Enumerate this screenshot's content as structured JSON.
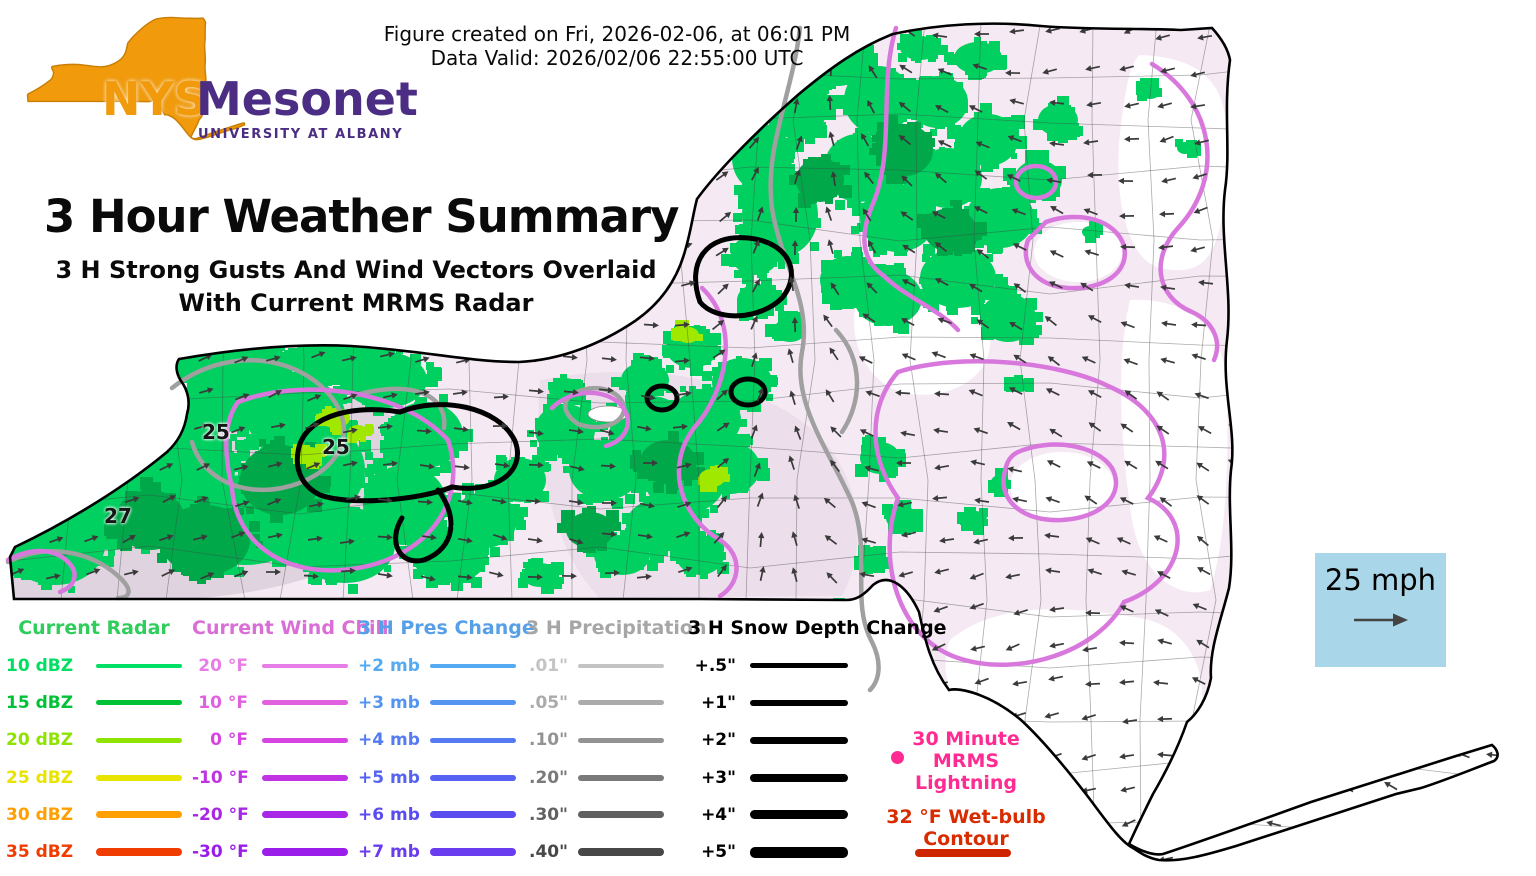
{
  "header": {
    "created": "Figure created on Fri, 2026-02-06, at 06:01 PM",
    "valid": "Data Valid: 2026/02/06 22:55:00 UTC"
  },
  "logo": {
    "nys": "NYS",
    "mesonet": "Mesonet",
    "subtitle": "UNIVERSITY AT ALBANY",
    "orange": "#f09a0c",
    "purple": "#4b2e83"
  },
  "titles": {
    "main": "3 Hour Weather Summary",
    "sub1": "3 H Strong Gusts And Wind Vectors Overlaid",
    "sub2": "With Current MRMS Radar"
  },
  "wind_scale": {
    "label": "25 mph",
    "box_color": "#a9d6e8"
  },
  "map": {
    "labels": {
      "gust_a": "25",
      "gust_b": "25",
      "gust_c": "27"
    },
    "colors": {
      "radar_green": "#00d05f",
      "radar_dark_green": "#00a84a",
      "radar_yellow_green": "#a0e800",
      "wind_chill_contour": "#d878dd",
      "precip_contour": "#a0a0a0",
      "snow_contour": "#000000",
      "state_fill": "#f5eaf4",
      "arrow_color": "#3a3a3a"
    }
  },
  "legend": {
    "radar": {
      "title": "Current Radar",
      "title_color": "#2fce5c",
      "rows": [
        {
          "label": "10 dBZ",
          "color": "#00df63"
        },
        {
          "label": "15 dBZ",
          "color": "#00c236"
        },
        {
          "label": "20 dBZ",
          "color": "#8fe300"
        },
        {
          "label": "25 dBZ",
          "color": "#e8e400"
        },
        {
          "label": "30 dBZ",
          "color": "#ffa000"
        },
        {
          "label": "35 dBZ",
          "color": "#f03c00"
        }
      ]
    },
    "wind_chill": {
      "title": "Current Wind Chill",
      "title_color": "#d96fd6",
      "rows": [
        {
          "label": "20 °F",
          "color": "#e77de7"
        },
        {
          "label": "10 °F",
          "color": "#e160de"
        },
        {
          "label": "0 °F",
          "color": "#d644e2"
        },
        {
          "label": "-10 °F",
          "color": "#c133e2"
        },
        {
          "label": "-20 °F",
          "color": "#a826e5"
        },
        {
          "label": "-30 °F",
          "color": "#9a1dea"
        }
      ]
    },
    "pres_change": {
      "title": "3 H Pres Change",
      "title_color": "#57a0e8",
      "rows": [
        {
          "label": "+2 mb",
          "color": "#55aaf2"
        },
        {
          "label": "+3 mb",
          "color": "#5595f2"
        },
        {
          "label": "+4 mb",
          "color": "#557bf2"
        },
        {
          "label": "+5 mb",
          "color": "#5563f0"
        },
        {
          "label": "+6 mb",
          "color": "#5a4cee"
        },
        {
          "label": "+7 mb",
          "color": "#6a3cf0"
        }
      ]
    },
    "precip": {
      "title": "3 H Precipitation",
      "title_color": "#a6a6a6",
      "rows": [
        {
          "label": ".01\"",
          "color": "#c4c4c4"
        },
        {
          "label": ".05\"",
          "color": "#ababab"
        },
        {
          "label": ".10\"",
          "color": "#939393"
        },
        {
          "label": ".20\"",
          "color": "#7a7a7a"
        },
        {
          "label": ".30\"",
          "color": "#616161"
        },
        {
          "label": ".40\"",
          "color": "#474747"
        }
      ]
    },
    "snow": {
      "title": "3 H Snow Depth Change",
      "title_color": "#000000",
      "rows": [
        {
          "label": "+.5\"",
          "color": "#000000"
        },
        {
          "label": "+1\"",
          "color": "#000000"
        },
        {
          "label": "+2\"",
          "color": "#000000"
        },
        {
          "label": "+3\"",
          "color": "#000000"
        },
        {
          "label": "+4\"",
          "color": "#000000"
        },
        {
          "label": "+5\"",
          "color": "#000000"
        }
      ]
    },
    "lightning": {
      "line1": "30 Minute",
      "line2": "MRMS",
      "line3": "Lightning",
      "color": "#ff2a92"
    },
    "wetbulb": {
      "label": "32 °F Wet-bulb Contour",
      "color": "#d92b00"
    }
  }
}
